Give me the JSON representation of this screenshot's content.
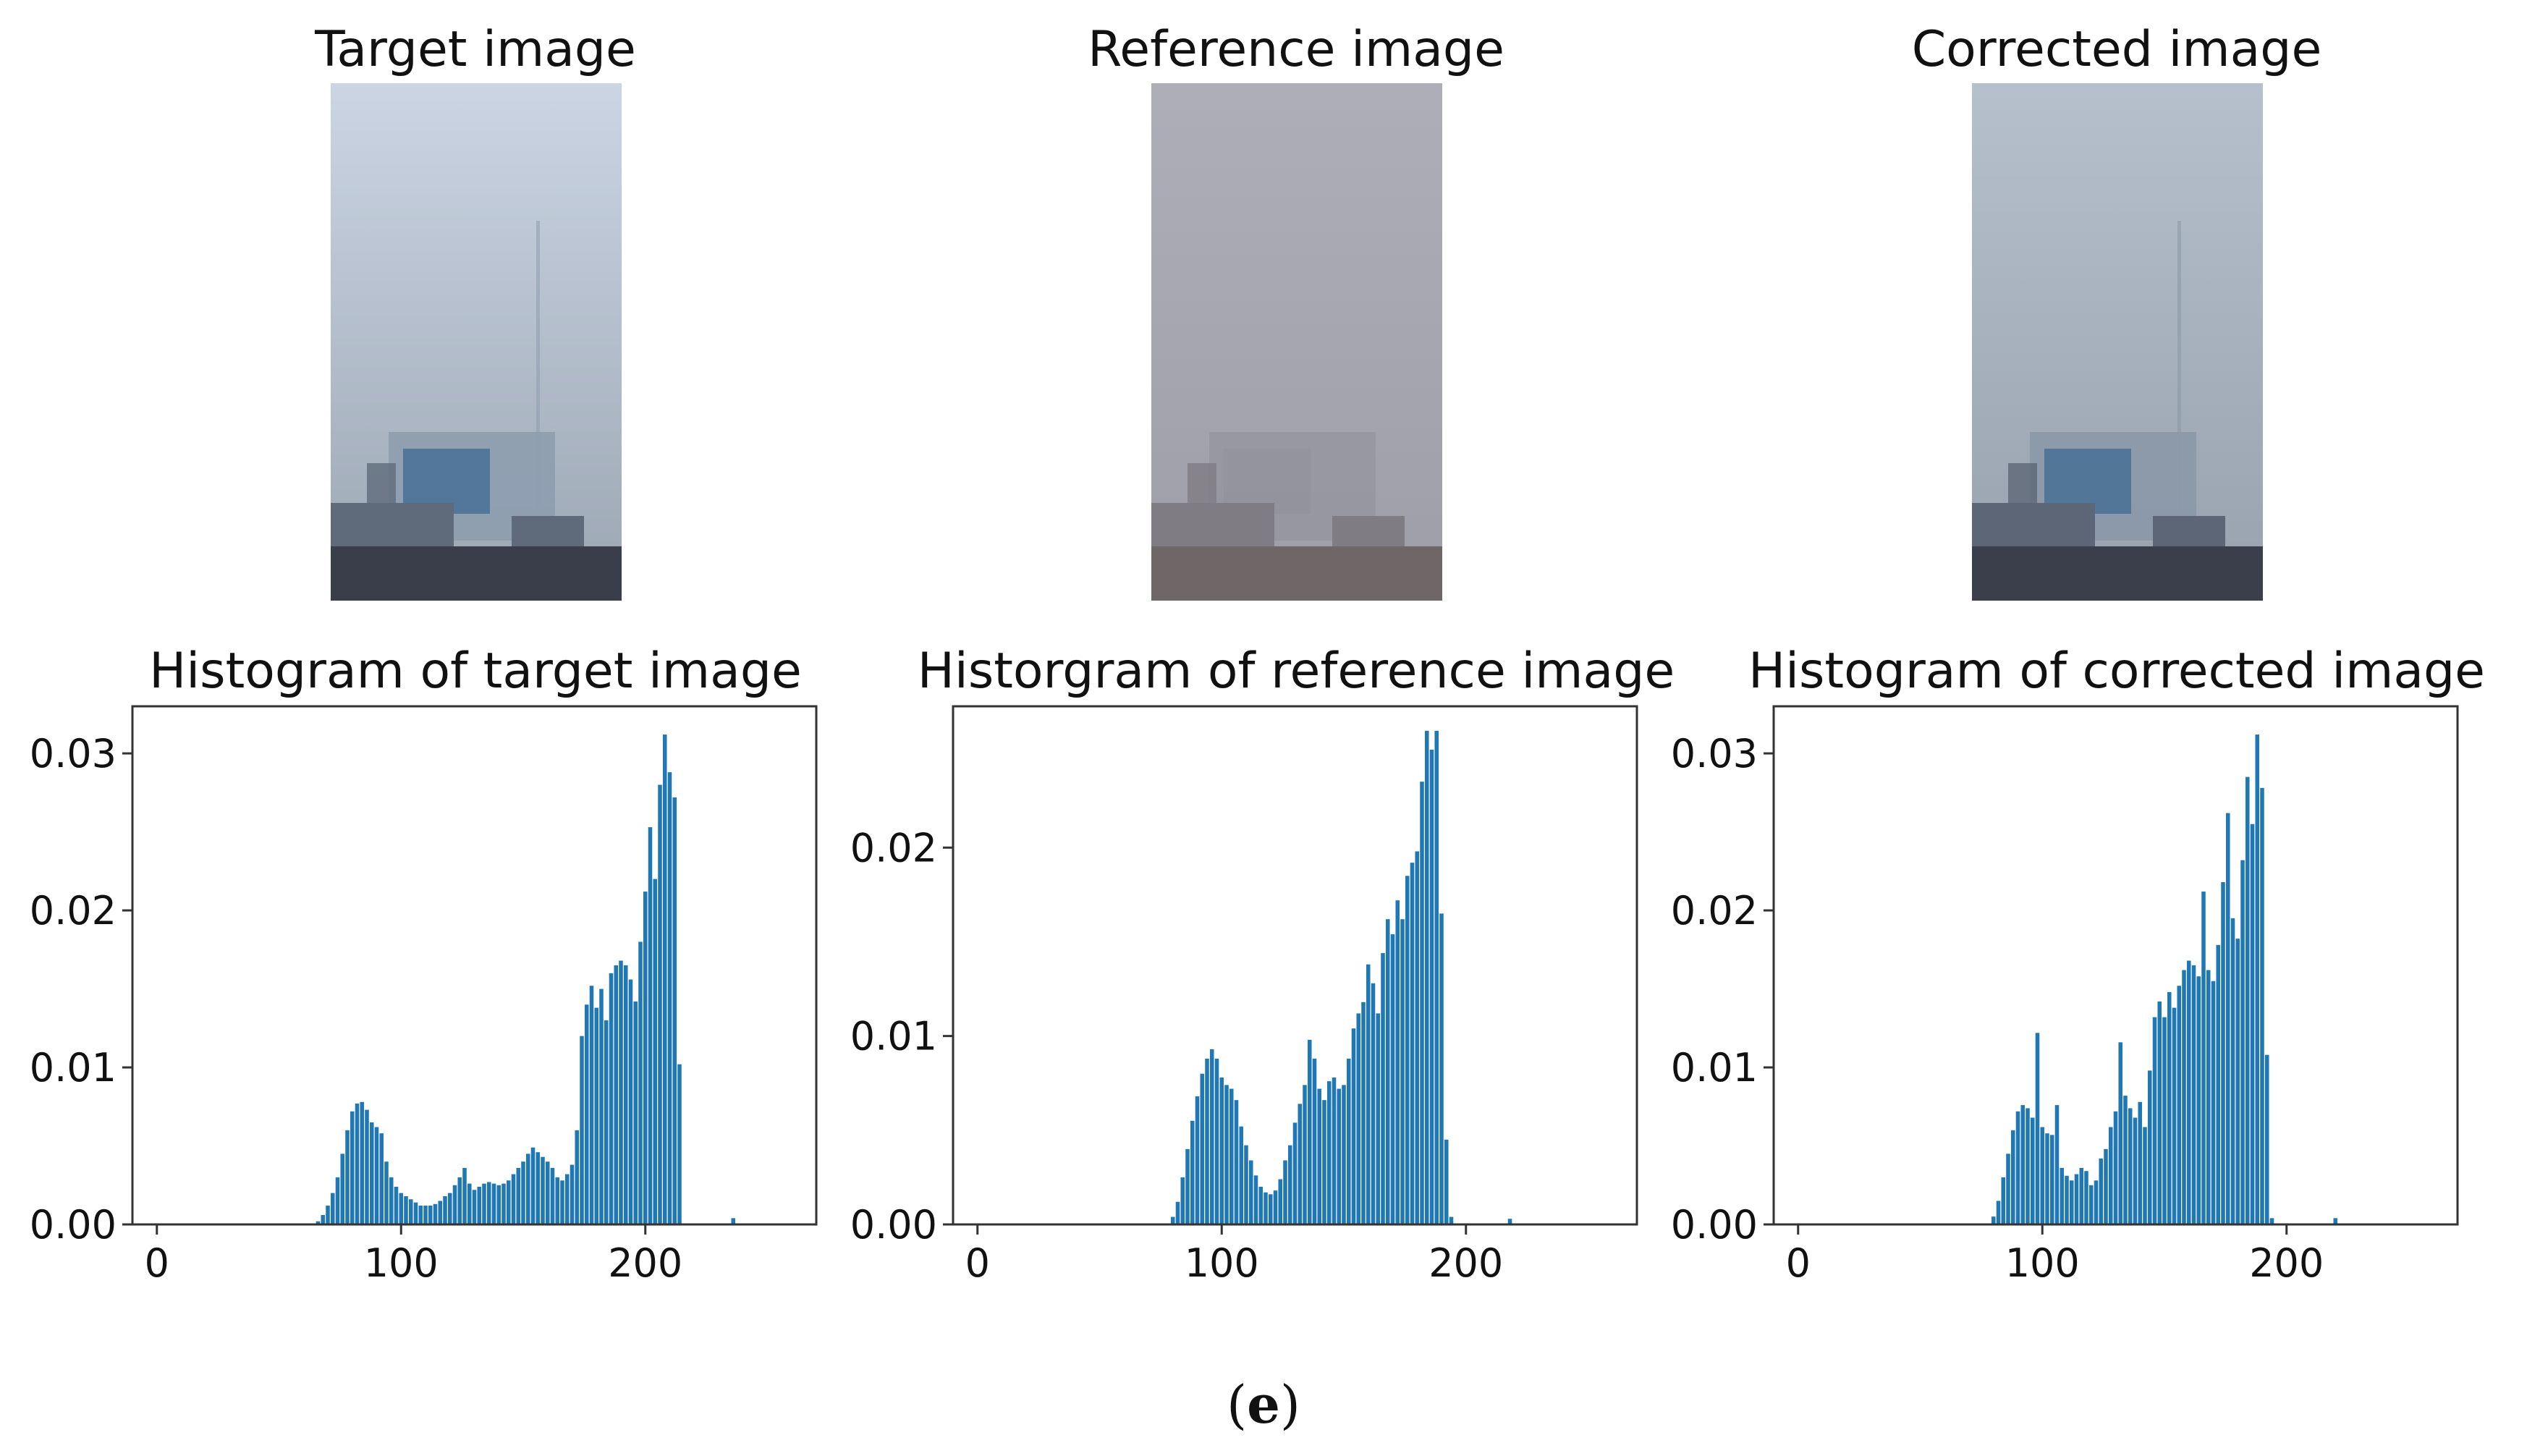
{
  "images": [
    {
      "title": "Target image",
      "palette": {
        "sky_top": "#cbd5e3",
        "sky_bottom": "#9ba6b3",
        "building_light": "#8e9daf",
        "building_mid": "#5f6b7b",
        "building_dark": "#3a3e4a",
        "accent": "#3d6a93"
      }
    },
    {
      "title": "Reference image",
      "palette": {
        "sky_top": "#aeaeb9",
        "sky_bottom": "#9e9ea8",
        "building_light": "#8f8f99",
        "building_mid": "#807c83",
        "building_dark": "#6f6667",
        "accent": "#8b8b95"
      }
    },
    {
      "title": "Corrected image",
      "palette": {
        "sky_top": "#b6c0cd",
        "sky_bottom": "#98a2ae",
        "building_light": "#8b98a8",
        "building_mid": "#5c6676",
        "building_dark": "#3b3f4b",
        "accent": "#3f6a91"
      }
    }
  ],
  "caption": {
    "open": "(",
    "letter": "e",
    "close": ")"
  },
  "chart_data": [
    {
      "type": "bar",
      "title": "Histogram of target image",
      "xlabel": "",
      "ylabel": "",
      "xlim": [
        -10,
        270
      ],
      "ylim": [
        0,
        0.033
      ],
      "xticks": [
        "0",
        "100",
        "200"
      ],
      "yticks": [
        "0.00",
        "0.01",
        "0.02",
        "0.03"
      ],
      "color": "#1f77b4",
      "x": [
        66,
        68,
        70,
        72,
        74,
        76,
        78,
        80,
        82,
        84,
        86,
        88,
        90,
        92,
        94,
        96,
        98,
        100,
        102,
        104,
        106,
        108,
        110,
        112,
        114,
        116,
        118,
        120,
        122,
        124,
        126,
        128,
        130,
        132,
        134,
        136,
        138,
        140,
        142,
        144,
        146,
        148,
        150,
        152,
        154,
        156,
        158,
        160,
        162,
        164,
        166,
        168,
        170,
        172,
        174,
        176,
        178,
        180,
        182,
        184,
        186,
        188,
        190,
        192,
        194,
        196,
        198,
        200,
        202,
        204,
        206,
        208,
        210,
        212,
        214,
        236
      ],
      "values": [
        0.0002,
        0.0006,
        0.0012,
        0.002,
        0.003,
        0.0045,
        0.006,
        0.0072,
        0.0077,
        0.0078,
        0.0073,
        0.0065,
        0.0062,
        0.0058,
        0.004,
        0.003,
        0.0024,
        0.002,
        0.0018,
        0.0016,
        0.0014,
        0.0012,
        0.0012,
        0.0012,
        0.0013,
        0.0015,
        0.0018,
        0.002,
        0.0025,
        0.003,
        0.0036,
        0.0026,
        0.0022,
        0.0024,
        0.0026,
        0.0027,
        0.0026,
        0.0025,
        0.0026,
        0.0028,
        0.0032,
        0.0036,
        0.004,
        0.0045,
        0.0049,
        0.0046,
        0.0043,
        0.004,
        0.0036,
        0.003,
        0.0028,
        0.0032,
        0.0038,
        0.006,
        0.012,
        0.014,
        0.0152,
        0.0138,
        0.015,
        0.013,
        0.016,
        0.0165,
        0.0168,
        0.0165,
        0.0156,
        0.0142,
        0.018,
        0.0212,
        0.0253,
        0.022,
        0.028,
        0.0312,
        0.0288,
        0.0272,
        0.0102,
        0.0004
      ]
    },
    {
      "type": "bar",
      "title": "Historgram of reference image",
      "xlabel": "",
      "ylabel": "",
      "xlim": [
        -10,
        270
      ],
      "ylim": [
        0,
        0.0275
      ],
      "xticks": [
        "0",
        "100",
        "200"
      ],
      "yticks": [
        "0.00",
        "0.01",
        "0.02"
      ],
      "color": "#1f77b4",
      "x": [
        80,
        82,
        84,
        86,
        88,
        90,
        92,
        94,
        96,
        98,
        100,
        102,
        104,
        106,
        108,
        110,
        112,
        114,
        116,
        118,
        120,
        122,
        124,
        126,
        128,
        130,
        132,
        134,
        136,
        138,
        140,
        142,
        144,
        146,
        148,
        150,
        152,
        154,
        156,
        158,
        160,
        162,
        164,
        166,
        168,
        170,
        172,
        174,
        176,
        178,
        180,
        182,
        184,
        186,
        188,
        190,
        192,
        194,
        218
      ],
      "values": [
        0.0004,
        0.0012,
        0.0025,
        0.004,
        0.0055,
        0.0068,
        0.008,
        0.0088,
        0.0093,
        0.0088,
        0.0078,
        0.0074,
        0.0072,
        0.0066,
        0.0052,
        0.0042,
        0.0034,
        0.0026,
        0.002,
        0.0017,
        0.0016,
        0.0018,
        0.0024,
        0.0034,
        0.0042,
        0.0054,
        0.0064,
        0.0074,
        0.0098,
        0.0088,
        0.0072,
        0.0066,
        0.0076,
        0.0078,
        0.0072,
        0.0074,
        0.0088,
        0.0104,
        0.0112,
        0.0118,
        0.0138,
        0.0128,
        0.0112,
        0.0144,
        0.0162,
        0.0154,
        0.0172,
        0.0162,
        0.0185,
        0.0192,
        0.0198,
        0.0235,
        0.0262,
        0.0252,
        0.0262,
        0.0165,
        0.0045,
        0.0004,
        0.0003
      ]
    },
    {
      "type": "bar",
      "title": "Histogram of corrected image",
      "xlabel": "",
      "ylabel": "",
      "xlim": [
        -10,
        270
      ],
      "ylim": [
        0,
        0.033
      ],
      "xticks": [
        "0",
        "100",
        "200"
      ],
      "yticks": [
        "0.00",
        "0.01",
        "0.02",
        "0.03"
      ],
      "color": "#1f77b4",
      "x": [
        80,
        82,
        84,
        86,
        88,
        90,
        92,
        94,
        96,
        98,
        100,
        102,
        104,
        106,
        108,
        110,
        112,
        114,
        116,
        118,
        120,
        122,
        124,
        126,
        128,
        130,
        132,
        134,
        136,
        138,
        140,
        142,
        144,
        146,
        148,
        150,
        152,
        154,
        156,
        158,
        160,
        162,
        164,
        166,
        168,
        170,
        172,
        174,
        176,
        178,
        180,
        182,
        184,
        186,
        188,
        190,
        192,
        194,
        220
      ],
      "values": [
        0.0005,
        0.0015,
        0.003,
        0.0045,
        0.006,
        0.0072,
        0.0076,
        0.0074,
        0.0068,
        0.0122,
        0.0062,
        0.0058,
        0.0057,
        0.0076,
        0.0036,
        0.0031,
        0.0028,
        0.0032,
        0.0036,
        0.0034,
        0.0025,
        0.0028,
        0.0042,
        0.0048,
        0.0062,
        0.0072,
        0.0116,
        0.0082,
        0.0074,
        0.0068,
        0.0078,
        0.0062,
        0.0098,
        0.0132,
        0.0142,
        0.0132,
        0.0148,
        0.0138,
        0.0152,
        0.0162,
        0.0168,
        0.0165,
        0.0158,
        0.0212,
        0.0162,
        0.0155,
        0.0178,
        0.0218,
        0.0262,
        0.0195,
        0.0182,
        0.0232,
        0.0285,
        0.0255,
        0.0312,
        0.0278,
        0.0108,
        0.0004,
        0.0004
      ]
    }
  ]
}
